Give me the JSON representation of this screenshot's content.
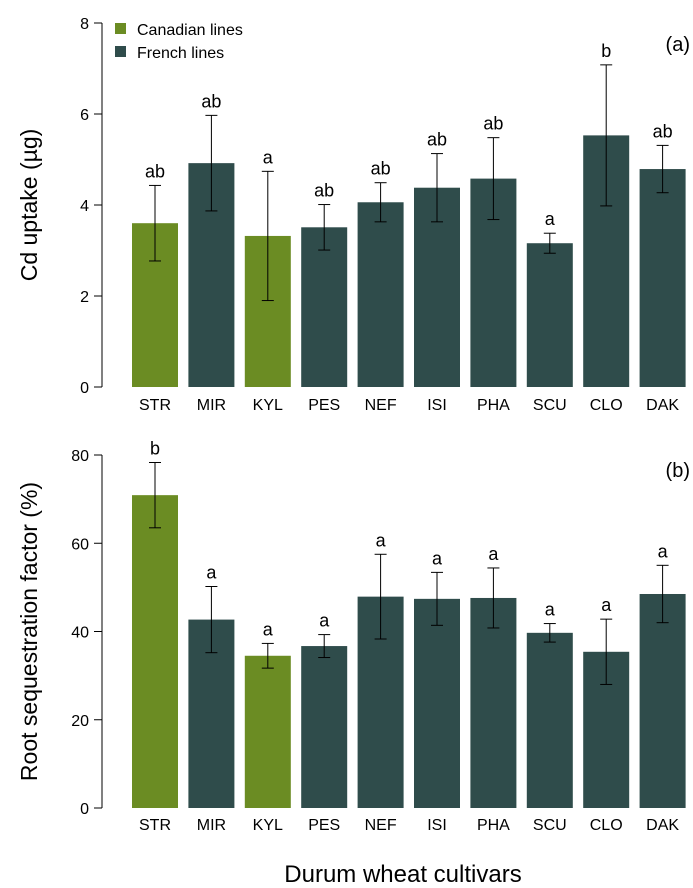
{
  "colors": {
    "canadian": "#6b8c23",
    "french": "#2f4c4b"
  },
  "legend": [
    {
      "label": "Canadian lines",
      "group": "canadian"
    },
    {
      "label": "French lines",
      "group": "french"
    }
  ],
  "x_axis_title": "Durum wheat cultivars",
  "chart_data": [
    {
      "type": "bar",
      "panel_label": "(a)",
      "ylabel": "Cd uptake (µg)",
      "ylim": [
        0,
        8
      ],
      "yticks": [
        0,
        2,
        4,
        6,
        8
      ],
      "categories": [
        "STR",
        "MIR",
        "KYL",
        "PES",
        "NEF",
        "ISI",
        "PHA",
        "SCU",
        "CLO",
        "DAK"
      ],
      "groups": [
        "canadian",
        "french",
        "canadian",
        "french",
        "french",
        "french",
        "french",
        "french",
        "french",
        "french"
      ],
      "values": [
        3.6,
        4.92,
        3.32,
        3.51,
        4.06,
        4.38,
        4.58,
        3.16,
        5.53,
        4.79
      ],
      "errors": [
        0.83,
        1.05,
        1.42,
        0.5,
        0.43,
        0.75,
        0.9,
        0.22,
        1.55,
        0.52
      ],
      "significance": [
        "ab",
        "ab",
        "a",
        "ab",
        "ab",
        "ab",
        "ab",
        "a",
        "b",
        "ab"
      ],
      "legend_position": "top-left"
    },
    {
      "type": "bar",
      "panel_label": "(b)",
      "ylabel": "Root sequestration factor (%)",
      "ylim": [
        0,
        80
      ],
      "yticks": [
        0,
        20,
        40,
        60,
        80
      ],
      "categories": [
        "STR",
        "MIR",
        "KYL",
        "PES",
        "NEF",
        "ISI",
        "PHA",
        "SCU",
        "CLO",
        "DAK"
      ],
      "groups": [
        "canadian",
        "french",
        "canadian",
        "french",
        "french",
        "french",
        "french",
        "french",
        "french",
        "french"
      ],
      "values": [
        70.9,
        42.7,
        34.5,
        36.7,
        47.9,
        47.4,
        47.6,
        39.7,
        35.4,
        48.5
      ],
      "errors": [
        7.4,
        7.5,
        2.8,
        2.6,
        9.6,
        6.0,
        6.8,
        2.1,
        7.4,
        6.5
      ],
      "significance": [
        "b",
        "a",
        "a",
        "a",
        "a",
        "a",
        "a",
        "a",
        "a",
        "a"
      ]
    }
  ]
}
